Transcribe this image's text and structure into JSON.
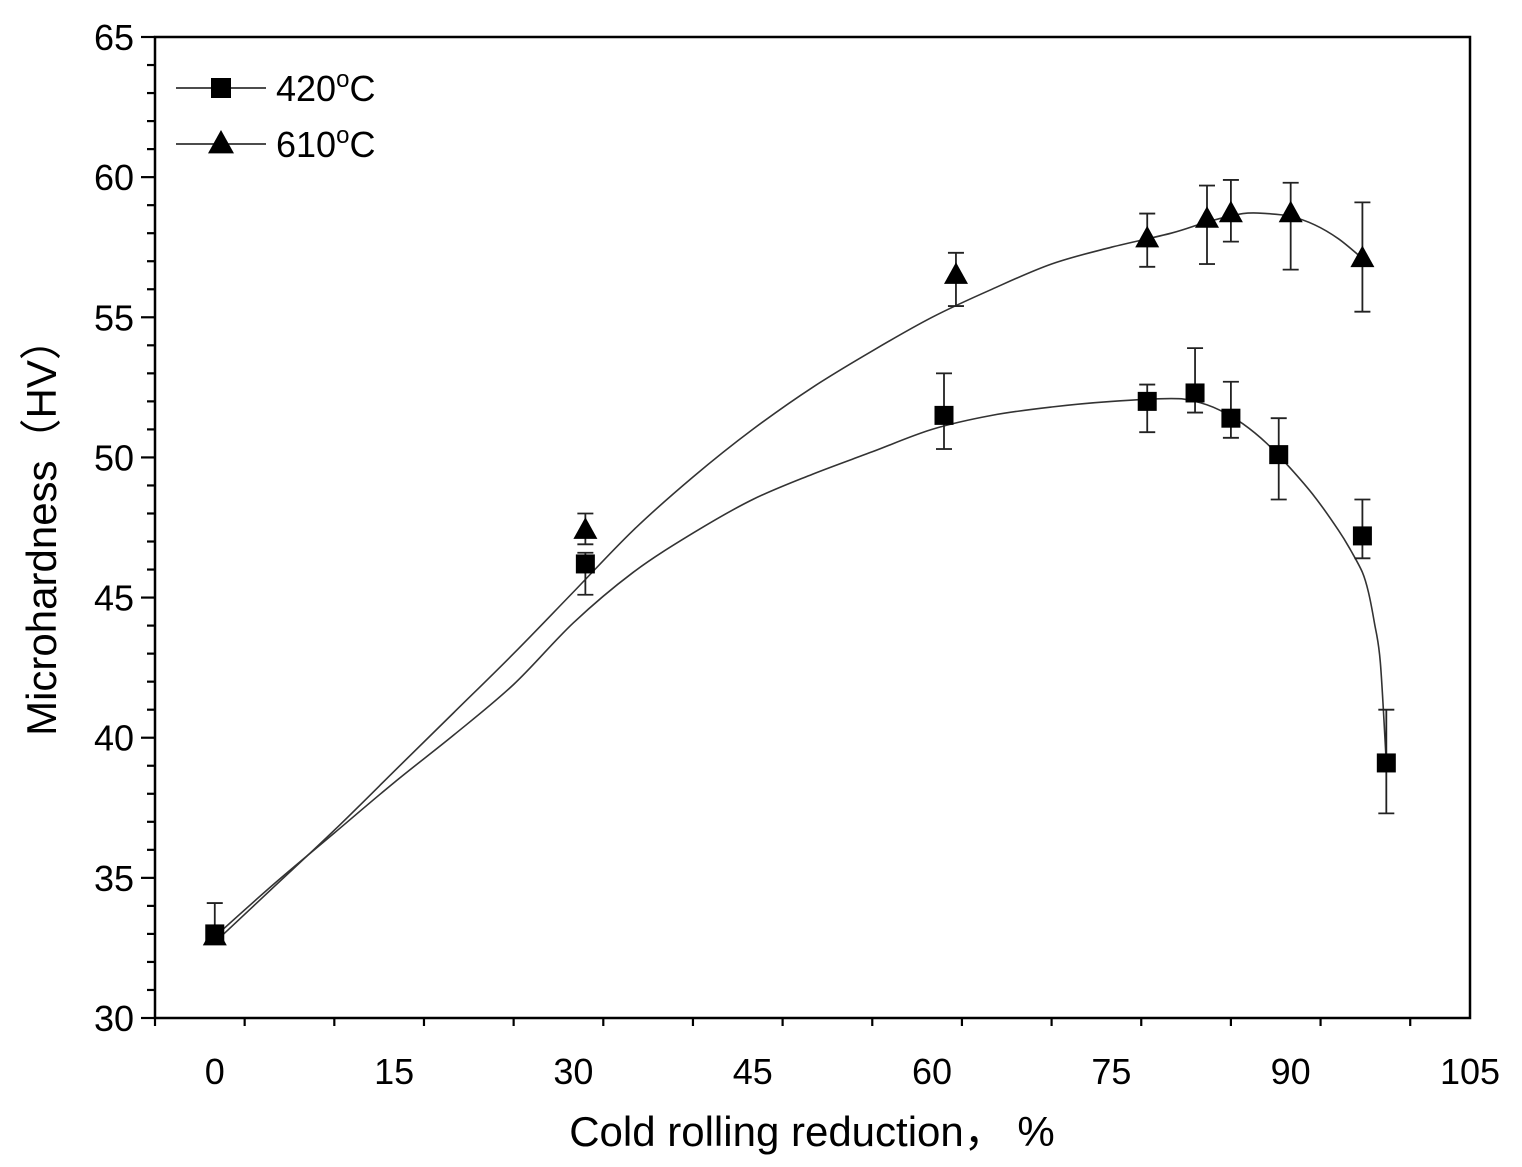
{
  "chart_data": {
    "type": "scatter",
    "title": "",
    "xlabel": "Cold rolling reduction， %",
    "ylabel": "Microhardness（HV）",
    "xlim": [
      -5,
      105
    ],
    "ylim": [
      30,
      65
    ],
    "x_ticks": [
      0,
      15,
      30,
      45,
      60,
      75,
      90,
      105
    ],
    "y_ticks": [
      30,
      35,
      40,
      45,
      50,
      55,
      60,
      65
    ],
    "x_tick_labels": [
      "0",
      "15",
      "30",
      "45",
      "60",
      "75",
      "90",
      "105"
    ],
    "y_tick_labels": [
      "30",
      "35",
      "40",
      "45",
      "50",
      "55",
      "60",
      "65"
    ],
    "legend": {
      "position": "top-left"
    },
    "grid": false,
    "series": [
      {
        "name": "420°C",
        "label_main": "420",
        "label_sup": "o",
        "label_end": "C",
        "marker": "square",
        "points": [
          {
            "x": 0,
            "y": 33.0,
            "err_low": 32.9,
            "err_high": 34.1
          },
          {
            "x": 31,
            "y": 46.2,
            "err_low": 45.1,
            "err_high": 46.6
          },
          {
            "x": 61,
            "y": 51.5,
            "err_low": 50.3,
            "err_high": 53.0
          },
          {
            "x": 78,
            "y": 52.0,
            "err_low": 50.9,
            "err_high": 52.6
          },
          {
            "x": 82,
            "y": 52.3,
            "err_low": 51.6,
            "err_high": 53.9
          },
          {
            "x": 85,
            "y": 51.4,
            "err_low": 50.7,
            "err_high": 52.7
          },
          {
            "x": 89,
            "y": 50.1,
            "err_low": 48.5,
            "err_high": 51.4
          },
          {
            "x": 96,
            "y": 47.2,
            "err_low": 46.4,
            "err_high": 48.5
          },
          {
            "x": 98,
            "y": 39.1,
            "err_low": 37.3,
            "err_high": 41.0
          }
        ],
        "fit_curve": [
          [
            0,
            32.9
          ],
          [
            5,
            34.8
          ],
          [
            10,
            36.6
          ],
          [
            15,
            38.4
          ],
          [
            20,
            40.1
          ],
          [
            25,
            41.9
          ],
          [
            30,
            44.1
          ],
          [
            35,
            45.9
          ],
          [
            40,
            47.3
          ],
          [
            45,
            48.5
          ],
          [
            50,
            49.4
          ],
          [
            55,
            50.2
          ],
          [
            60,
            51.0
          ],
          [
            65,
            51.5
          ],
          [
            70,
            51.8
          ],
          [
            75,
            52.0
          ],
          [
            80,
            52.1
          ],
          [
            82,
            52.0
          ],
          [
            84,
            51.7
          ],
          [
            86,
            51.2
          ],
          [
            88,
            50.5
          ],
          [
            90,
            49.6
          ],
          [
            92,
            48.6
          ],
          [
            94,
            47.4
          ],
          [
            95,
            46.7
          ],
          [
            96,
            45.9
          ],
          [
            96.5,
            45.2
          ],
          [
            97,
            44.1
          ],
          [
            97.5,
            42.7
          ],
          [
            98,
            39.1
          ]
        ]
      },
      {
        "name": "610°C",
        "label_main": "610",
        "label_sup": "o",
        "label_end": "C",
        "marker": "triangle",
        "points": [
          {
            "x": 0,
            "y": 32.9,
            "err_low": 32.7,
            "err_high": 33.2
          },
          {
            "x": 31,
            "y": 47.4,
            "err_low": 46.9,
            "err_high": 48.0
          },
          {
            "x": 62,
            "y": 56.5,
            "err_low": 55.4,
            "err_high": 57.3
          },
          {
            "x": 78,
            "y": 57.8,
            "err_low": 56.8,
            "err_high": 58.7
          },
          {
            "x": 83,
            "y": 58.5,
            "err_low": 56.9,
            "err_high": 59.7
          },
          {
            "x": 85,
            "y": 58.7,
            "err_low": 57.7,
            "err_high": 59.9
          },
          {
            "x": 90,
            "y": 58.7,
            "err_low": 56.7,
            "err_high": 59.8
          },
          {
            "x": 96,
            "y": 57.1,
            "err_low": 55.2,
            "err_high": 59.1
          }
        ],
        "fit_curve": [
          [
            0,
            32.7
          ],
          [
            5,
            34.7
          ],
          [
            10,
            36.7
          ],
          [
            15,
            38.8
          ],
          [
            20,
            40.9
          ],
          [
            25,
            43.0
          ],
          [
            30,
            45.2
          ],
          [
            35,
            47.4
          ],
          [
            40,
            49.3
          ],
          [
            45,
            51.0
          ],
          [
            50,
            52.5
          ],
          [
            55,
            53.8
          ],
          [
            60,
            55.0
          ],
          [
            65,
            56.0
          ],
          [
            70,
            56.9
          ],
          [
            75,
            57.5
          ],
          [
            80,
            58.0
          ],
          [
            83,
            58.4
          ],
          [
            86,
            58.7
          ],
          [
            88,
            58.7
          ],
          [
            90,
            58.6
          ],
          [
            92,
            58.3
          ],
          [
            94,
            57.8
          ],
          [
            96,
            57.1
          ]
        ]
      }
    ]
  }
}
